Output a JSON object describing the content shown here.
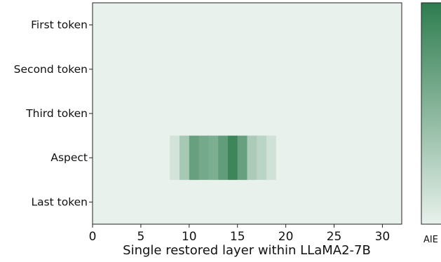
{
  "chart_data": {
    "type": "heatmap",
    "xlabel": "Single restored layer within LLaMA2-7B",
    "ylabel": "",
    "rows": [
      "First token",
      "Second token",
      "Third token",
      "Aspect",
      "Last token"
    ],
    "x_ticks": [
      0,
      5,
      10,
      15,
      20,
      25,
      30
    ],
    "xlim": [
      0,
      32
    ],
    "n_layers": 32,
    "values": [
      [
        0,
        0,
        0,
        0,
        0,
        0,
        0,
        0,
        0,
        0,
        0,
        0,
        0,
        0,
        0,
        0,
        0,
        0,
        0,
        0,
        0,
        0,
        0,
        0,
        0,
        0,
        0,
        0,
        0,
        0,
        0,
        0
      ],
      [
        0,
        0,
        0,
        0,
        0,
        0,
        0,
        0,
        0,
        0,
        0,
        0,
        0,
        0,
        0,
        0,
        0,
        0,
        0,
        0,
        0,
        0,
        0,
        0,
        0,
        0,
        0,
        0,
        0,
        0,
        0,
        0
      ],
      [
        0,
        0,
        0,
        0,
        0,
        0,
        0,
        0,
        0,
        0,
        0,
        0,
        0,
        0,
        0,
        0,
        0,
        0,
        0,
        0,
        0,
        0,
        0,
        0,
        0,
        0,
        0,
        0,
        0,
        0,
        0,
        0
      ],
      [
        0,
        0,
        0,
        0,
        0,
        0,
        0,
        0,
        0.12,
        0.35,
        0.7,
        0.62,
        0.58,
        0.72,
        0.92,
        0.7,
        0.33,
        0.25,
        0.13,
        0,
        0,
        0,
        0,
        0,
        0,
        0,
        0,
        0,
        0,
        0,
        0,
        0
      ],
      [
        0,
        0,
        0,
        0,
        0,
        0,
        0,
        0,
        0,
        0,
        0,
        0,
        0,
        0,
        0,
        0,
        0,
        0,
        0,
        0,
        0,
        0,
        0,
        0,
        0,
        0,
        0,
        0,
        0,
        0,
        0,
        0
      ]
    ],
    "colorbar_label": "AIE",
    "color_low": "#e8f1ec",
    "color_high": "#2e7d4f"
  }
}
